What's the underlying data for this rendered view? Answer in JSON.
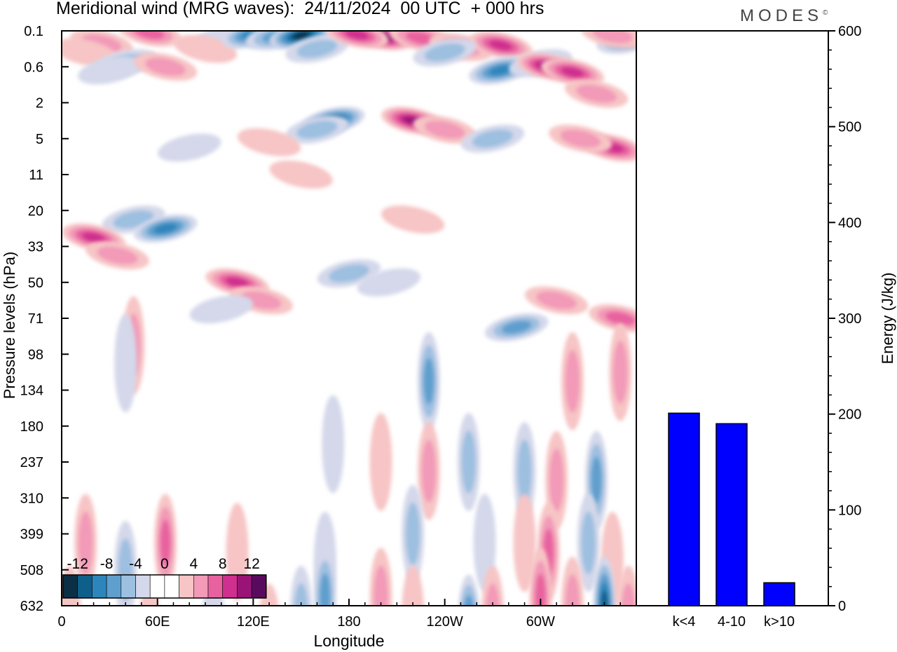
{
  "header": {
    "title": "Meridional wind (MRG waves):  24/11/2024  00 UTC  + 000 hrs",
    "brand": "MODES",
    "brand_mark": "©"
  },
  "chart_data": [
    {
      "type": "heatmap",
      "title": "Meridional wind (MRG waves):  24/11/2024  00 UTC  + 000 hrs",
      "xlabel": "Longitude",
      "ylabel": "Pressure levels (hPa)",
      "xticks": [
        "0",
        "60E",
        "120E",
        "180",
        "120W",
        "60W"
      ],
      "xtick_degrees": [
        0,
        60,
        120,
        180,
        240,
        300
      ],
      "xlim": [
        0,
        360
      ],
      "yticks": [
        "0.1",
        "0.6",
        "2",
        "5",
        "11",
        "20",
        "33",
        "50",
        "71",
        "98",
        "134",
        "180",
        "237",
        "310",
        "399",
        "508",
        "632"
      ],
      "y_scale": "vertical levels (top 0.1 hPa, bottom 632 hPa)",
      "colorbar": {
        "labels": [
          "-12",
          "-8",
          "-4",
          "0",
          "4",
          "8",
          "12"
        ],
        "colors": [
          "#0b2f45",
          "#0e5f8a",
          "#2d86bb",
          "#5f9fce",
          "#9dbfe0",
          "#d4d8ea",
          "#ffffff",
          "#ffffff",
          "#f7c5c5",
          "#f29ab8",
          "#e8629f",
          "#cf2f8e",
          "#9a1478",
          "#5a0a5e"
        ]
      },
      "blobs": [
        {
          "lon": 25,
          "lev": 0.7,
          "v": 5
        },
        {
          "lon": 15,
          "lev": 1.2,
          "v": 3
        },
        {
          "lon": 55,
          "lev": 0.1,
          "v": 7
        },
        {
          "lon": 40,
          "lev": 1.8,
          "v": -4
        },
        {
          "lon": 30,
          "lev": 2.2,
          "v": -3
        },
        {
          "lon": 65,
          "lev": 2.0,
          "v": 5
        },
        {
          "lon": 100,
          "lev": 0.5,
          "v": -3
        },
        {
          "lon": 90,
          "lev": 1.0,
          "v": 3
        },
        {
          "lon": 120,
          "lev": 0.2,
          "v": -8
        },
        {
          "lon": 135,
          "lev": 0.3,
          "v": -7
        },
        {
          "lon": 150,
          "lev": 0.25,
          "v": -14
        },
        {
          "lon": 160,
          "lev": 1.0,
          "v": -5
        },
        {
          "lon": 200,
          "lev": 0.3,
          "v": 13
        },
        {
          "lon": 185,
          "lev": 0.2,
          "v": 9
        },
        {
          "lon": 225,
          "lev": 0.4,
          "v": 6
        },
        {
          "lon": 250,
          "lev": 0.9,
          "v": 5
        },
        {
          "lon": 275,
          "lev": 0.8,
          "v": 8
        },
        {
          "lon": 240,
          "lev": 1.2,
          "v": -5
        },
        {
          "lon": 275,
          "lev": 2.2,
          "v": -9
        },
        {
          "lon": 300,
          "lev": 1.8,
          "v": -3
        },
        {
          "lon": 305,
          "lev": 2.0,
          "v": 10
        },
        {
          "lon": 320,
          "lev": 2.3,
          "v": 8
        },
        {
          "lon": 335,
          "lev": 3.5,
          "v": 5
        },
        {
          "lon": 355,
          "lev": 0.5,
          "v": -7
        },
        {
          "lon": 345,
          "lev": 0.2,
          "v": 4
        },
        {
          "lon": 170,
          "lev": 5.0,
          "v": -10
        },
        {
          "lon": 160,
          "lev": 5.5,
          "v": -5
        },
        {
          "lon": 220,
          "lev": 5.0,
          "v": 10
        },
        {
          "lon": 240,
          "lev": 5.5,
          "v": 4
        },
        {
          "lon": 270,
          "lev": 6.0,
          "v": -4
        },
        {
          "lon": 345,
          "lev": 6.5,
          "v": 8
        },
        {
          "lon": 325,
          "lev": 6.0,
          "v": 4
        },
        {
          "lon": 130,
          "lev": 6.2,
          "v": 3
        },
        {
          "lon": 80,
          "lev": 6.5,
          "v": -3
        },
        {
          "lon": 45,
          "lev": 10.5,
          "v": -5
        },
        {
          "lon": 65,
          "lev": 11.0,
          "v": -9
        },
        {
          "lon": 20,
          "lev": 11.5,
          "v": 8
        },
        {
          "lon": 35,
          "lev": 12.5,
          "v": 4
        },
        {
          "lon": 110,
          "lev": 14.0,
          "v": 8
        },
        {
          "lon": 125,
          "lev": 15.0,
          "v": 4
        },
        {
          "lon": 180,
          "lev": 13.5,
          "v": -4
        },
        {
          "lon": 205,
          "lev": 14.0,
          "v": -3
        },
        {
          "lon": 100,
          "lev": 15.5,
          "v": -3
        },
        {
          "lon": 150,
          "lev": 8.0,
          "v": 3
        },
        {
          "lon": 220,
          "lev": 10.5,
          "v": 3
        },
        {
          "lon": 310,
          "lev": 15.0,
          "v": 4
        },
        {
          "lon": 350,
          "lev": 16.0,
          "v": 6
        },
        {
          "lon": 285,
          "lev": 16.5,
          "v": -6
        },
        {
          "lon": 45,
          "lev": 17.5,
          "v": 5
        },
        {
          "lon": 40,
          "lev": 18.5,
          "v": -3
        },
        {
          "lon": 230,
          "lev": 19.5,
          "v": -6
        },
        {
          "lon": 320,
          "lev": 19.5,
          "v": 4
        },
        {
          "lon": 350,
          "lev": 19.0,
          "v": 5
        },
        {
          "lon": 170,
          "lev": 23.0,
          "v": -3
        },
        {
          "lon": 200,
          "lev": 24.0,
          "v": 3
        },
        {
          "lon": 230,
          "lev": 24.5,
          "v": 5
        },
        {
          "lon": 255,
          "lev": 24.0,
          "v": -5
        },
        {
          "lon": 290,
          "lev": 24.5,
          "v": -4
        },
        {
          "lon": 310,
          "lev": 25.0,
          "v": 5
        },
        {
          "lon": 335,
          "lev": 25.0,
          "v": -7
        },
        {
          "lon": 15,
          "lev": 28.5,
          "v": 4
        },
        {
          "lon": 65,
          "lev": 28.5,
          "v": 7
        },
        {
          "lon": 40,
          "lev": 30.0,
          "v": -4
        },
        {
          "lon": 110,
          "lev": 29.0,
          "v": 3
        },
        {
          "lon": 165,
          "lev": 29.5,
          "v": -3
        },
        {
          "lon": 220,
          "lev": 28.0,
          "v": -5
        },
        {
          "lon": 265,
          "lev": 28.5,
          "v": -3
        },
        {
          "lon": 290,
          "lev": 28.5,
          "v": 3
        },
        {
          "lon": 305,
          "lev": 29.0,
          "v": 6
        },
        {
          "lon": 330,
          "lev": 28.5,
          "v": -4
        },
        {
          "lon": 345,
          "lev": 29.5,
          "v": 3
        },
        {
          "lon": 165,
          "lev": 31.5,
          "v": -7
        },
        {
          "lon": 150,
          "lev": 32.5,
          "v": -4
        },
        {
          "lon": 200,
          "lev": 31.5,
          "v": 5
        },
        {
          "lon": 220,
          "lev": 32.5,
          "v": 3
        },
        {
          "lon": 255,
          "lev": 33.0,
          "v": -8
        },
        {
          "lon": 270,
          "lev": 32.5,
          "v": 4
        },
        {
          "lon": 300,
          "lev": 31.5,
          "v": 7
        },
        {
          "lon": 320,
          "lev": 32.0,
          "v": 5
        },
        {
          "lon": 340,
          "lev": 32.0,
          "v": -10
        },
        {
          "lon": 355,
          "lev": 32.5,
          "v": 5
        },
        {
          "lon": 5,
          "lev": 32.5,
          "v": 3
        },
        {
          "lon": 95,
          "lev": 33.0,
          "v": -3
        },
        {
          "lon": 130,
          "lev": 33.5,
          "v": 3
        },
        {
          "lon": 55,
          "lev": 33.5,
          "v": 3
        }
      ]
    },
    {
      "type": "bar",
      "categories": [
        "k<4",
        "4-10",
        "k>10"
      ],
      "values": [
        201,
        190,
        24
      ],
      "ylabel": "Energy (J/kg)",
      "ylim": [
        0,
        600
      ],
      "yticks": [
        0,
        100,
        200,
        300,
        400,
        500,
        600
      ],
      "bar_color": "#0000ff"
    }
  ]
}
